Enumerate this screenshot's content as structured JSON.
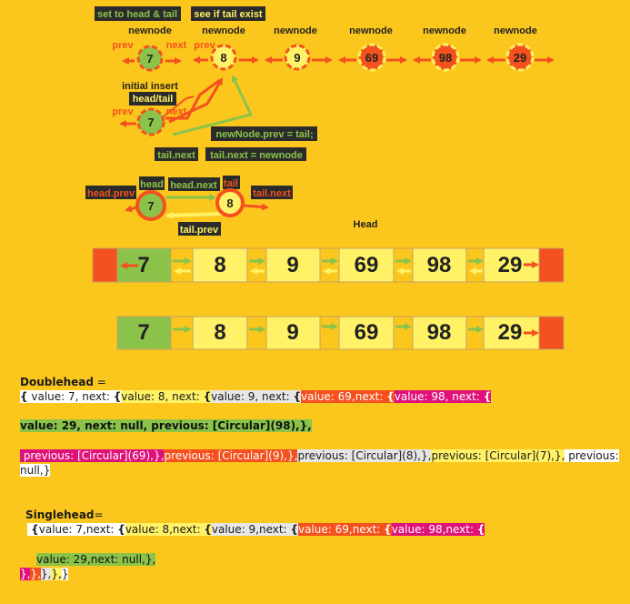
{
  "colors": {
    "background": "#fcc71d",
    "node_green": "#8bc34a",
    "node_yellow": "#fff266",
    "arrow_orange": "#f4511e",
    "arrow_green": "#8bc34a",
    "label_dark": "#2b2b2b",
    "label_green_text": "#8bc34a"
  },
  "top_labels": {
    "set_head_tail": "set to head & tail",
    "see_if_tail": "see if tail exist"
  },
  "top_row": {
    "node_header": "newnode",
    "prev": "prev",
    "next": "next",
    "values": [
      "7",
      "8",
      "9",
      "69",
      "98",
      "29"
    ]
  },
  "initial": {
    "title": "initial insert",
    "head_tail": "head/tail",
    "prev": "prev",
    "next": "next",
    "value": "7",
    "newnode_prev": "newNode.prev = tail;",
    "tail_next": "tail.next",
    "tail_next_eq": "tail.next = newnode"
  },
  "pair": {
    "head_prev": "head.prev",
    "head": "head",
    "head_next": "head.next",
    "tail": "tail",
    "tail_next": "tail.next",
    "tail_prev": "tail.prev",
    "v1": "7",
    "v2": "8"
  },
  "head_label": "Head",
  "double_row": [
    "7",
    "8",
    "9",
    "69",
    "98",
    "29"
  ],
  "single_row": [
    "7",
    "8",
    "9",
    "69",
    "98",
    "29"
  ],
  "doublehead": {
    "title": "Doublehead",
    "eq": " =",
    "line1": [
      {
        "text": "{",
        "cls": "bg-white b"
      },
      {
        "text": " value: 7, next: ",
        "cls": "bg-white"
      },
      {
        "text": "{",
        "cls": "bg-white b"
      },
      {
        "text": "value: 8, next: ",
        "cls": "bg-yellow"
      },
      {
        "text": "{",
        "cls": "bg-yellow b"
      },
      {
        "text": "value: 9, next: ",
        "cls": "bg-lgray"
      },
      {
        "text": "{",
        "cls": "bg-lgray b"
      },
      {
        "text": "value: 69,next: ",
        "cls": "bg-orange"
      },
      {
        "text": "{",
        "cls": "bg-orange b"
      },
      {
        "text": "value: 98, next: ",
        "cls": "bg-magenta"
      },
      {
        "text": "{",
        "cls": "bg-magenta b"
      }
    ],
    "line2": "value: 29, next: null, previous: [Circular](98),},",
    "line3": [
      {
        "text": " previous: [Circular](69),},",
        "cls": "bg-magenta"
      },
      {
        "text": "previous: [Circular](9),},",
        "cls": "bg-orange"
      },
      {
        "text": "previous: [Circular](8),},",
        "cls": "bg-lgray"
      },
      {
        "text": "previous: [Circular](7),},",
        "cls": "bg-yellow"
      },
      {
        "text": " previous:",
        "cls": "bg-white"
      }
    ],
    "line4": "null,}"
  },
  "singlehead": {
    "title": "Singlehead",
    "eq": "=",
    "line1": [
      {
        "text": " {",
        "cls": "bg-white b"
      },
      {
        "text": "value: 7,next: ",
        "cls": "bg-white"
      },
      {
        "text": "{",
        "cls": "bg-white b"
      },
      {
        "text": "value: 8,next: ",
        "cls": "bg-yellow"
      },
      {
        "text": "{",
        "cls": "bg-yellow b"
      },
      {
        "text": "value: 9,next: ",
        "cls": "bg-lgray"
      },
      {
        "text": "{",
        "cls": "bg-lgray b"
      },
      {
        "text": "value: 69,next: ",
        "cls": "bg-orange"
      },
      {
        "text": "{",
        "cls": "bg-orange b"
      },
      {
        "text": "value: 98,next: ",
        "cls": "bg-magenta"
      },
      {
        "text": "{",
        "cls": "bg-magenta b"
      }
    ],
    "line2": "value: 29,next: null,},",
    "line3": [
      {
        "text": "},",
        "cls": "bg-magenta"
      },
      {
        "text": "},",
        "cls": "bg-orange"
      },
      {
        "text": "},",
        "cls": "bg-lgray"
      },
      {
        "text": "},",
        "cls": "bg-yellow"
      },
      {
        "text": "}",
        "cls": "bg-white"
      }
    ]
  }
}
